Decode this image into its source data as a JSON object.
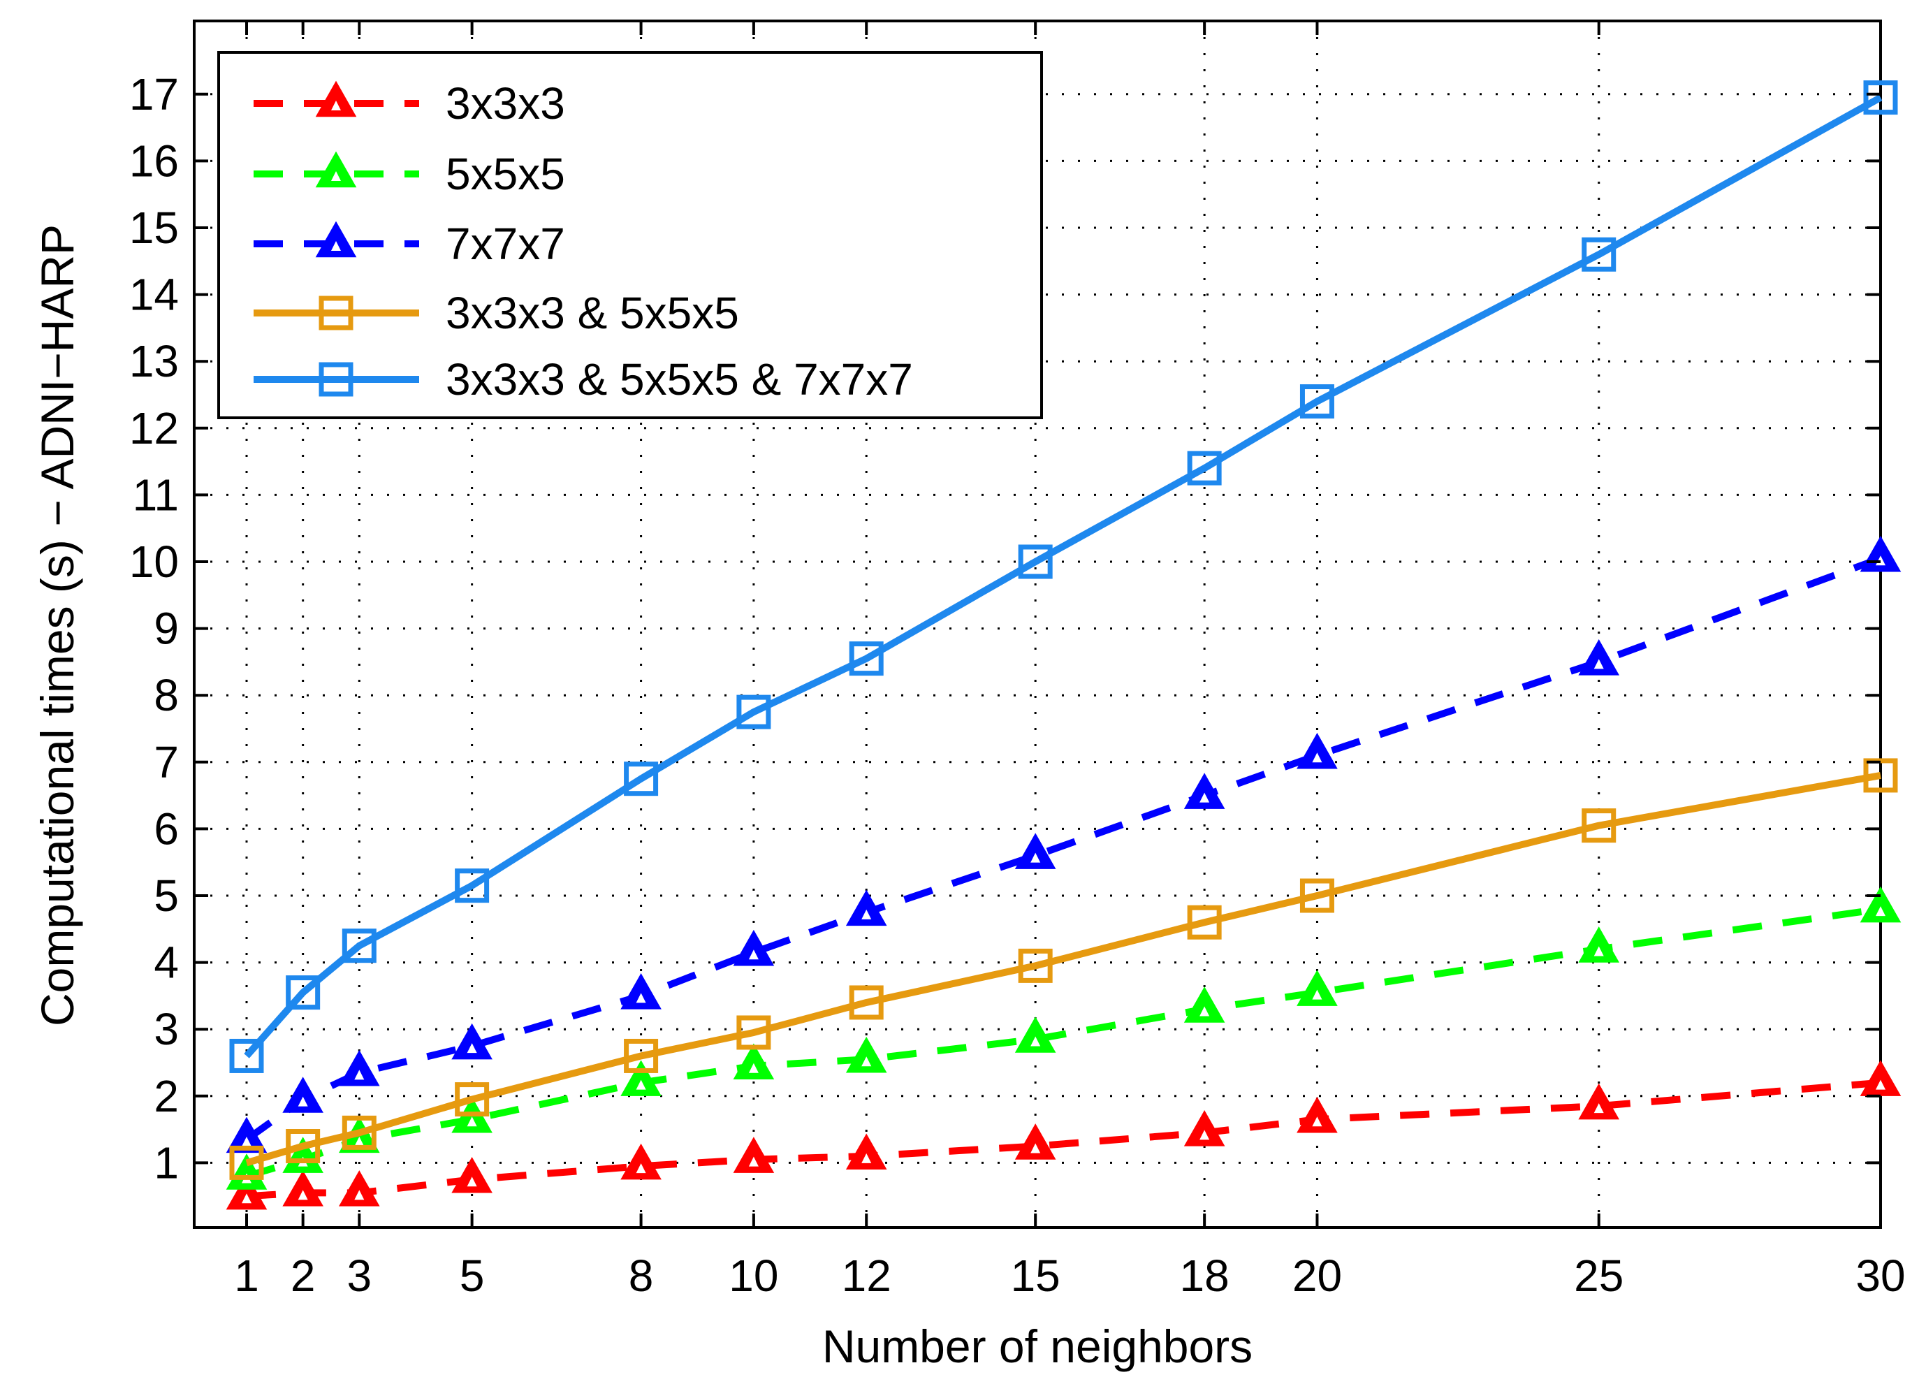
{
  "chart_data": {
    "type": "line",
    "title": "",
    "xlabel": "Number of neighbors",
    "ylabel": "Computational times (s) − ADNI−HARP",
    "x": [
      1,
      2,
      3,
      5,
      8,
      10,
      12,
      15,
      18,
      20,
      25,
      30
    ],
    "xticks": [
      1,
      2,
      3,
      5,
      8,
      10,
      12,
      15,
      18,
      20,
      25,
      30
    ],
    "yticks": [
      1,
      2,
      3,
      4,
      5,
      6,
      7,
      8,
      9,
      10,
      11,
      12,
      13,
      14,
      15,
      16,
      17
    ],
    "xlim": [
      0,
      30
    ],
    "ylim": [
      0,
      18.5
    ],
    "grid": "dotted",
    "legend_position": "top-left",
    "series": [
      {
        "name": "3x3x3",
        "color": "#ff0000",
        "line": "dashed",
        "marker": "triangle",
        "values": [
          0.5,
          0.55,
          0.55,
          0.75,
          0.95,
          1.05,
          1.1,
          1.25,
          1.45,
          1.65,
          1.85,
          2.2
        ]
      },
      {
        "name": "5x5x5",
        "color": "#00ff00",
        "line": "dashed",
        "marker": "triangle",
        "values": [
          0.8,
          1.05,
          1.35,
          1.65,
          2.2,
          2.45,
          2.55,
          2.85,
          3.3,
          3.55,
          4.2,
          4.8
        ]
      },
      {
        "name": "7x7x7",
        "color": "#0000ff",
        "line": "dashed",
        "marker": "triangle",
        "values": [
          1.35,
          1.95,
          2.35,
          2.75,
          3.5,
          4.15,
          4.75,
          5.6,
          6.5,
          7.1,
          8.5,
          10.05
        ]
      },
      {
        "name": "3x3x3 & 5x5x5",
        "color": "#e69a10",
        "line": "solid",
        "marker": "square",
        "values": [
          1.0,
          1.25,
          1.45,
          1.95,
          2.6,
          2.95,
          3.4,
          3.95,
          4.6,
          5.0,
          6.05,
          6.8
        ]
      },
      {
        "name": "3x3x3 & 5x5x5 & 7x7x7",
        "color": "#1e88ee",
        "line": "solid",
        "marker": "square",
        "values": [
          2.6,
          3.55,
          4.25,
          5.15,
          6.75,
          7.75,
          8.55,
          10.0,
          11.4,
          12.4,
          14.6,
          16.95
        ]
      }
    ]
  }
}
